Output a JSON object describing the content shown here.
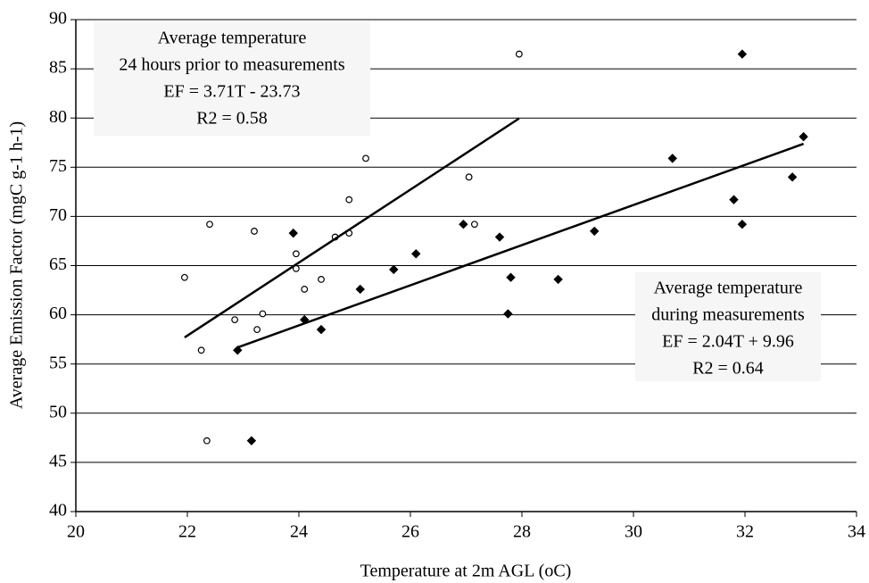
{
  "chart_data": {
    "type": "scatter",
    "x_label": "Temperature at 2m AGL (oC)",
    "y_label": "Average Emission Factor (mgC g-1 h-1)",
    "xlim": [
      20,
      34
    ],
    "xticks": [
      20,
      22,
      24,
      26,
      28,
      30,
      32,
      34
    ],
    "ylim": [
      40,
      90
    ],
    "yticks": [
      40,
      45,
      50,
      55,
      60,
      65,
      70,
      75,
      80,
      85,
      90
    ],
    "grid": true,
    "series": [
      {
        "marker": "circle-open",
        "color": "#000000",
        "x": [
          21.95,
          22.25,
          22.4,
          22.35,
          22.85,
          23.2,
          23.25,
          23.35,
          23.95,
          23.95,
          24.1,
          24.4,
          24.65,
          24.9,
          24.9,
          25.2,
          27.05,
          27.15,
          27.95
        ],
        "values": [
          63.8,
          56.4,
          69.2,
          47.2,
          59.5,
          68.5,
          58.5,
          60.1,
          66.2,
          64.7,
          62.6,
          63.6,
          67.9,
          68.3,
          71.7,
          75.9,
          74.0,
          69.2,
          86.5
        ],
        "trendline": {
          "x": [
            21.95,
            27.95
          ],
          "y": [
            57.7,
            79.96
          ]
        }
      },
      {
        "marker": "diamond-filled",
        "color": "#000000",
        "x": [
          22.9,
          23.15,
          23.9,
          24.1,
          24.4,
          25.1,
          25.7,
          26.1,
          26.95,
          27.6,
          27.75,
          27.8,
          28.65,
          29.3,
          30.7,
          31.8,
          31.95,
          31.95,
          32.85,
          33.05
        ],
        "values": [
          56.4,
          47.2,
          68.3,
          59.5,
          58.5,
          62.6,
          64.6,
          66.2,
          69.2,
          67.9,
          60.1,
          63.8,
          63.6,
          68.5,
          75.9,
          71.7,
          69.2,
          86.5,
          74.0,
          78.1
        ],
        "trendline": {
          "x": [
            22.9,
            33.05
          ],
          "y": [
            56.68,
            77.38
          ]
        }
      }
    ],
    "annotations": [
      [
        "Average temperature",
        "24 hours prior to measurements",
        "EF = 3.71T - 23.73",
        "R2 = 0.58"
      ],
      [
        "Average temperature",
        "during measurements",
        "EF = 2.04T + 9.96",
        "R2 = 0.64"
      ]
    ]
  }
}
